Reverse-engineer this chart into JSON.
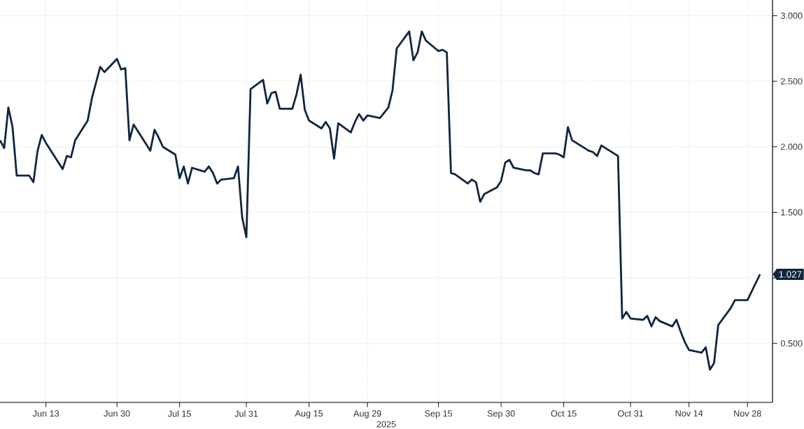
{
  "chart_data": {
    "type": "line",
    "xlabel": "2025",
    "x": [
      "2025-06-02",
      "2025-06-03",
      "2025-06-04",
      "2025-06-05",
      "2025-06-06",
      "2025-06-09",
      "2025-06-10",
      "2025-06-11",
      "2025-06-12",
      "2025-06-13",
      "2025-06-16",
      "2025-06-17",
      "2025-06-18",
      "2025-06-19",
      "2025-06-20",
      "2025-06-23",
      "2025-06-24",
      "2025-06-25",
      "2025-06-26",
      "2025-06-27",
      "2025-06-30",
      "2025-07-01",
      "2025-07-02",
      "2025-07-03",
      "2025-07-04",
      "2025-07-07",
      "2025-07-08",
      "2025-07-09",
      "2025-07-10",
      "2025-07-11",
      "2025-07-14",
      "2025-07-15",
      "2025-07-16",
      "2025-07-17",
      "2025-07-18",
      "2025-07-21",
      "2025-07-22",
      "2025-07-23",
      "2025-07-24",
      "2025-07-25",
      "2025-07-28",
      "2025-07-29",
      "2025-07-30",
      "2025-07-31",
      "2025-08-01",
      "2025-08-04",
      "2025-08-05",
      "2025-08-06",
      "2025-08-07",
      "2025-08-08",
      "2025-08-11",
      "2025-08-12",
      "2025-08-13",
      "2025-08-14",
      "2025-08-15",
      "2025-08-18",
      "2025-08-19",
      "2025-08-20",
      "2025-08-21",
      "2025-08-22",
      "2025-08-25",
      "2025-08-26",
      "2025-08-27",
      "2025-08-28",
      "2025-08-29",
      "2025-09-01",
      "2025-09-02",
      "2025-09-03",
      "2025-09-04",
      "2025-09-05",
      "2025-09-08",
      "2025-09-09",
      "2025-09-10",
      "2025-09-11",
      "2025-09-12",
      "2025-09-15",
      "2025-09-16",
      "2025-09-17",
      "2025-09-18",
      "2025-09-19",
      "2025-09-22",
      "2025-09-23",
      "2025-09-24",
      "2025-09-25",
      "2025-09-26",
      "2025-09-29",
      "2025-09-30",
      "2025-10-01",
      "2025-10-02",
      "2025-10-03",
      "2025-10-06",
      "2025-10-07",
      "2025-10-08",
      "2025-10-09",
      "2025-10-10",
      "2025-10-13",
      "2025-10-14",
      "2025-10-15",
      "2025-10-16",
      "2025-10-17",
      "2025-10-20",
      "2025-10-21",
      "2025-10-22",
      "2025-10-23",
      "2025-10-24",
      "2025-10-27",
      "2025-10-28",
      "2025-10-29",
      "2025-10-30",
      "2025-10-31",
      "2025-11-03",
      "2025-11-04",
      "2025-11-05",
      "2025-11-06",
      "2025-11-07",
      "2025-11-10",
      "2025-11-11",
      "2025-11-12",
      "2025-11-13",
      "2025-11-14",
      "2025-11-17",
      "2025-11-18",
      "2025-11-19",
      "2025-11-20",
      "2025-11-21",
      "2025-11-24",
      "2025-11-25",
      "2025-11-26",
      "2025-11-27",
      "2025-11-28",
      "2025-12-01"
    ],
    "series": [
      {
        "color": "#0f2540",
        "values": [
          2.05,
          1.99,
          2.3,
          2.15,
          1.78,
          1.78,
          1.73,
          1.97,
          2.09,
          2.03,
          1.88,
          1.83,
          1.93,
          1.92,
          2.05,
          2.2,
          2.37,
          2.49,
          2.61,
          2.57,
          2.67,
          2.59,
          2.6,
          2.05,
          2.17,
          2.02,
          1.97,
          2.13,
          2.07,
          2.0,
          1.94,
          1.76,
          1.85,
          1.72,
          1.84,
          1.81,
          1.85,
          1.8,
          1.72,
          1.75,
          1.76,
          1.85,
          1.46,
          1.31,
          2.44,
          2.51,
          2.33,
          2.41,
          2.42,
          2.29,
          2.29,
          2.4,
          2.55,
          2.28,
          2.2,
          2.14,
          2.19,
          2.14,
          1.91,
          2.18,
          2.11,
          2.19,
          2.25,
          2.2,
          2.24,
          2.22,
          2.26,
          2.3,
          2.43,
          2.75,
          2.88,
          2.66,
          2.72,
          2.88,
          2.81,
          2.73,
          2.74,
          2.72,
          1.8,
          1.79,
          1.72,
          1.75,
          1.73,
          1.58,
          1.64,
          1.69,
          1.74,
          1.88,
          1.9,
          1.84,
          1.82,
          1.82,
          1.8,
          1.79,
          1.95,
          1.95,
          1.94,
          1.92,
          2.15,
          2.05,
          1.99,
          1.97,
          1.96,
          1.93,
          2.01,
          1.95,
          1.93,
          0.69,
          0.74,
          0.69,
          0.68,
          0.71,
          0.63,
          0.7,
          0.67,
          0.63,
          0.68,
          0.59,
          0.51,
          0.45,
          0.43,
          0.47,
          0.3,
          0.35,
          0.64,
          0.77,
          0.83,
          0.83,
          0.83,
          0.83,
          1.027
        ]
      }
    ],
    "xlim": [
      "2025-06-02",
      "2025-12-04"
    ],
    "xticks": [
      {
        "value": "2025-06-13",
        "label": "Jun 13"
      },
      {
        "value": "2025-06-30",
        "label": "Jun 30"
      },
      {
        "value": "2025-07-15",
        "label": "Jul 15"
      },
      {
        "value": "2025-07-31",
        "label": "Jul 31"
      },
      {
        "value": "2025-08-15",
        "label": "Aug 15"
      },
      {
        "value": "2025-08-29",
        "label": "Aug 29"
      },
      {
        "value": "2025-09-15",
        "label": "Sep 15"
      },
      {
        "value": "2025-09-30",
        "label": "Sep 30"
      },
      {
        "value": "2025-10-15",
        "label": "Oct 15"
      },
      {
        "value": "2025-10-31",
        "label": "Oct 31"
      },
      {
        "value": "2025-11-14",
        "label": "Nov 14"
      },
      {
        "value": "2025-11-28",
        "label": "Nov 28"
      }
    ],
    "ylim": [
      0.05,
      3.12
    ],
    "yticks": [
      {
        "value": 0.5,
        "label": "0.500"
      },
      {
        "value": 1.0,
        "label": null
      },
      {
        "value": 1.5,
        "label": "1.500"
      },
      {
        "value": 2.0,
        "label": "2.000"
      },
      {
        "value": 2.5,
        "label": "2.500"
      },
      {
        "value": 3.0,
        "label": "3.000"
      }
    ],
    "annotations": [
      "1.027"
    ],
    "grid": true,
    "marker": "none",
    "line_style": "solid"
  }
}
